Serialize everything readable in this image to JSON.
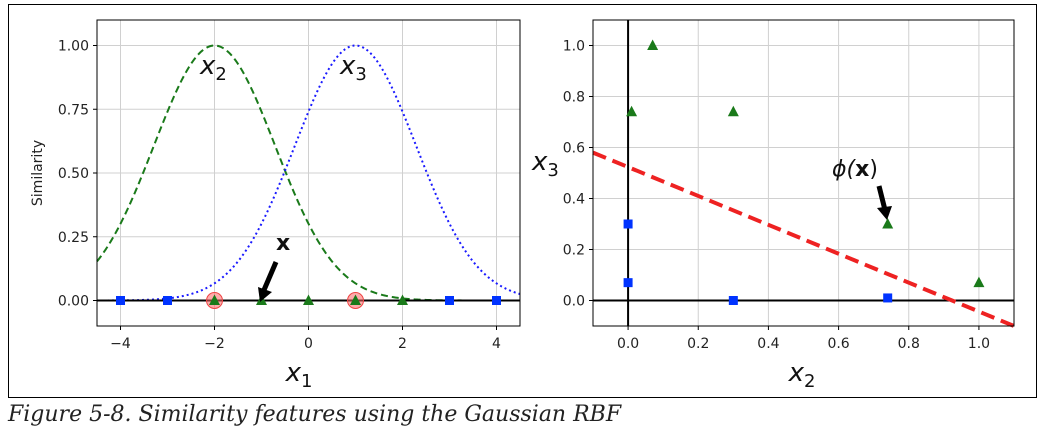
{
  "figure": {
    "caption": "Figure 5-8. Similarity features using the Gaussian RBF"
  },
  "chart_data": [
    {
      "type": "line",
      "title": "",
      "xlabel": "x1",
      "xlabel_main": "x",
      "xlabel_sub": "1",
      "ylabel": "Similarity",
      "xlim": [
        -4.5,
        4.5
      ],
      "ylim": [
        -0.1,
        1.1
      ],
      "xticks": [
        -4,
        -2,
        0,
        2,
        4
      ],
      "xtick_labels": [
        "−4",
        "−2",
        "0",
        "2",
        "4"
      ],
      "yticks": [
        0.0,
        0.25,
        0.5,
        0.75,
        1.0
      ],
      "ytick_labels": [
        "0.00",
        "0.25",
        "0.50",
        "0.75",
        "1.00"
      ],
      "grid": true,
      "gamma": 0.3,
      "series": [
        {
          "name": "x2",
          "label_main": "x",
          "label_sub": "2",
          "landmark": -2,
          "style": "dashed",
          "color": "#1a7a1a"
        },
        {
          "name": "x3",
          "label_main": "x",
          "label_sub": "3",
          "landmark": 1,
          "style": "dotted",
          "color": "#1a1aff"
        }
      ],
      "points_class0": {
        "x": [
          -4,
          -3,
          3,
          4
        ],
        "marker": "square",
        "color": "#0033ff"
      },
      "points_class1": {
        "x": [
          -2,
          -1,
          0,
          1,
          2
        ],
        "marker": "triangle",
        "color": "#1a7a1a"
      },
      "landmarks": {
        "x": [
          -2,
          1
        ],
        "color": "#ff6666"
      },
      "annotation": {
        "text": "x",
        "x": -1,
        "y": 0
      }
    },
    {
      "type": "scatter",
      "title": "",
      "xlabel": "x2",
      "xlabel_main": "x",
      "xlabel_sub": "2",
      "ylabel": "x3",
      "ylabel_main": "x",
      "ylabel_sub": "3",
      "xlim": [
        -0.1,
        1.1
      ],
      "ylim": [
        -0.1,
        1.1
      ],
      "xticks": [
        0.0,
        0.2,
        0.4,
        0.6,
        0.8,
        1.0
      ],
      "xtick_labels": [
        "0.0",
        "0.2",
        "0.4",
        "0.6",
        "0.8",
        "1.0"
      ],
      "yticks": [
        0.0,
        0.2,
        0.4,
        0.6,
        0.8,
        1.0
      ],
      "ytick_labels": [
        "0.0",
        "0.2",
        "0.4",
        "0.6",
        "0.8",
        "1.0"
      ],
      "grid": true,
      "class0": {
        "x": [
          0.0,
          0.0,
          0.3,
          0.74
        ],
        "y": [
          0.07,
          0.3,
          0.0,
          0.01
        ],
        "marker": "square",
        "color": "#0033ff"
      },
      "class1": {
        "x": [
          0.01,
          0.07,
          0.3,
          0.74,
          1.0
        ],
        "y": [
          0.74,
          1.0,
          0.74,
          0.3,
          0.07
        ],
        "marker": "triangle",
        "color": "#1a7a1a"
      },
      "decision_boundary": {
        "x": [
          -0.1,
          1.1
        ],
        "y": [
          0.58,
          -0.1
        ],
        "color": "#ee2222",
        "style": "dashed"
      },
      "annotation": {
        "text": "ϕ(x)",
        "text_pre": "ϕ(",
        "text_bold": "x",
        "text_post": ")",
        "x": 0.74,
        "y": 0.3
      }
    }
  ]
}
